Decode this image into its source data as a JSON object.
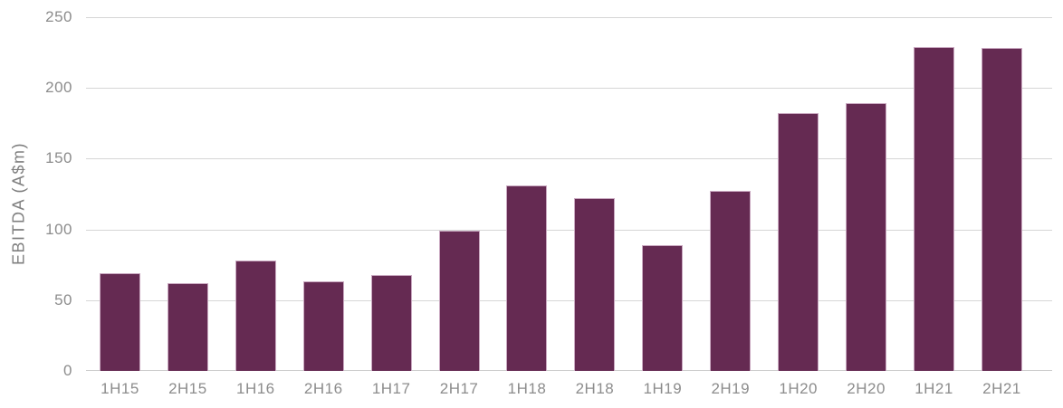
{
  "chart_data": {
    "type": "bar",
    "categories": [
      "1H15",
      "2H15",
      "1H16",
      "2H16",
      "1H17",
      "2H17",
      "1H18",
      "2H18",
      "1H19",
      "2H19",
      "1H20",
      "2H20",
      "1H21",
      "2H21"
    ],
    "values": [
      69,
      62,
      78,
      63,
      68,
      99,
      131,
      122,
      89,
      127,
      182,
      189,
      229,
      228
    ],
    "title": "",
    "xlabel": "",
    "ylabel": "EBITDA (A$m)",
    "ylim": [
      0,
      250
    ],
    "yticks": [
      0,
      50,
      100,
      150,
      200,
      250
    ],
    "ytick_labels": [
      "0",
      "50",
      "100",
      "150",
      "200",
      "250"
    ],
    "grid": true,
    "legend": false,
    "colors": {
      "bar_fill": "#652a52",
      "bar_border": "#c9a8c0",
      "gridline": "#d6d6d6",
      "baseline": "#cccccc",
      "tick_text": "#8c8c8c",
      "axis_label_text": "#7f7f7f",
      "background": "#ffffff"
    }
  }
}
